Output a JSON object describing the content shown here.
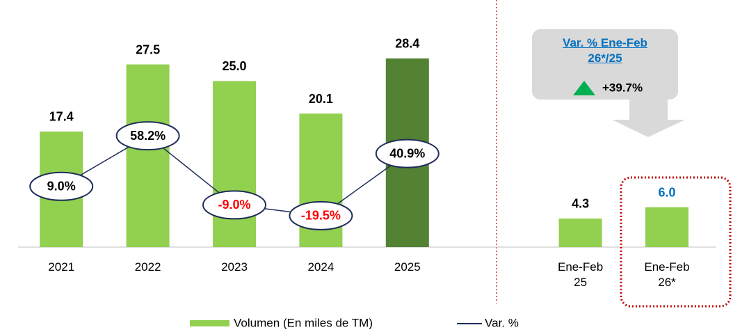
{
  "chart_data": {
    "type": "bar_line",
    "categories": [
      "2021",
      "2022",
      "2023",
      "2024",
      "2025",
      null,
      "Ene-Feb 25",
      "Ene-Feb 26*"
    ],
    "series": [
      {
        "name": "Volumen (En miles de TM)",
        "type": "bar",
        "color": "#92d050",
        "colors": [
          "#92d050",
          "#92d050",
          "#92d050",
          "#92d050",
          "#548235",
          null,
          "#92d050",
          "#92d050"
        ],
        "values": [
          17.4,
          27.5,
          25.0,
          20.1,
          28.4,
          null,
          4.3,
          6.0
        ],
        "value_labels": [
          "17.4",
          "27.5",
          "25.0",
          "20.1",
          "28.4",
          null,
          "4.3",
          "6.0"
        ],
        "label_colors": [
          "#000000",
          "#000000",
          "#000000",
          "#000000",
          "#000000",
          null,
          "#000000",
          "#0070c0"
        ]
      },
      {
        "name": "Var. %",
        "type": "line",
        "axis": "y2",
        "color": "#1f2d5a",
        "values": [
          9.0,
          58.2,
          -9.0,
          -19.5,
          40.9,
          null,
          null,
          null
        ],
        "value_labels": [
          "9.0%",
          "58.2%",
          "-9.0%",
          "-19.5%",
          "40.9%",
          null,
          null,
          null
        ],
        "label_colors": [
          "#000000",
          "#000000",
          "#ff0000",
          "#ff0000",
          "#000000",
          null,
          null,
          null
        ]
      }
    ],
    "ylim": [
      0,
      35
    ],
    "y2lim": [
      -50,
      176
    ],
    "annotation": {
      "title": "Var. % Ene-Feb 26*/25",
      "value": "+39.7%",
      "color": "#00b050"
    }
  }
}
